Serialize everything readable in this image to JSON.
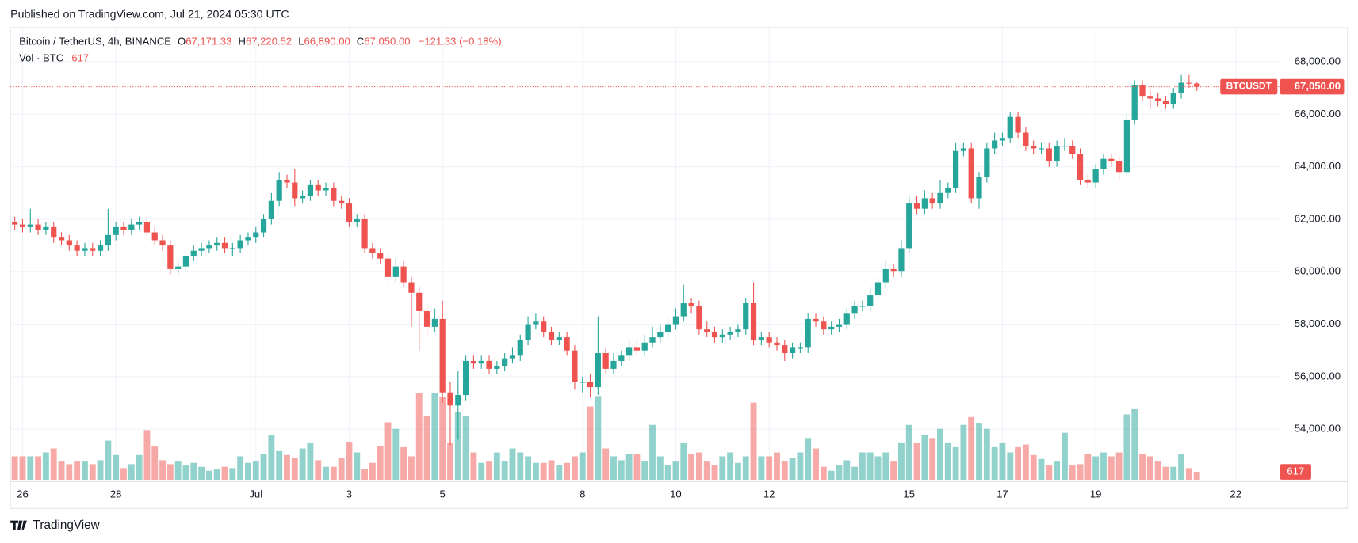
{
  "header": {
    "published": "Published on TradingView.com, Jul 21, 2024 05:30 UTC"
  },
  "footer": {
    "brand": "TradingView"
  },
  "chart_data": {
    "type": "candlestick",
    "legend": {
      "symbol": "Bitcoin / TetherUS, 4h, BINANCE",
      "open_prefix": "O",
      "high_prefix": "H",
      "low_prefix": "L",
      "close_prefix": "C",
      "open_label": "67,171.33",
      "high_label": "67,220.52",
      "low_label": "66,890.00",
      "close_label": "67,050.00",
      "change_label": "−121.33 (−0.18%)",
      "volume_title": "Vol · BTC"
    },
    "price_tag": {
      "name": "BTCUSDT",
      "label": "67,050.00"
    },
    "up_color": "#26a69a",
    "down_color": "#ef5350",
    "open": [
      61900,
      61800,
      61700,
      61800,
      61600,
      61700,
      61300,
      61200,
      61000,
      60800,
      60900,
      60800,
      61000,
      61400,
      61700,
      61600,
      61800,
      61900,
      61500,
      61200,
      61000,
      60100,
      60200,
      60600,
      60800,
      60900,
      61000,
      61100,
      60900,
      60900,
      61200,
      61300,
      61500,
      62000,
      62700,
      63500,
      63400,
      62800,
      62900,
      63300,
      63100,
      63200,
      62700,
      62600,
      61900,
      62000,
      60900,
      60700,
      60500,
      59800,
      60200,
      59600,
      59200,
      58500,
      57900,
      58200,
      55400,
      54900,
      55300,
      56600,
      56500,
      56600,
      56300,
      56400,
      56700,
      56800,
      57400,
      58000,
      58100,
      57700,
      57400,
      57500,
      57000,
      55800,
      55800,
      55600,
      56900,
      56300,
      56600,
      56800,
      57100,
      57000,
      57300,
      57500,
      57700,
      58000,
      58300,
      58800,
      58700,
      57800,
      57700,
      57500,
      57600,
      57700,
      57800,
      58800,
      57400,
      57500,
      57300,
      57200,
      56900,
      57100,
      57100,
      58200,
      58100,
      57800,
      57900,
      58000,
      58400,
      58700,
      58700,
      59100,
      59600,
      60100,
      60000,
      60900,
      62600,
      62400,
      62800,
      62600,
      63000,
      63200,
      64600,
      64700,
      62800,
      63600,
      64700,
      65000,
      65100,
      65900,
      65300,
      64800,
      64700,
      64700,
      64200,
      64800,
      64800,
      64500,
      63500,
      63400,
      63900,
      64300,
      64200,
      63800,
      65800,
      67100,
      66700,
      66600,
      66500,
      66400,
      66800,
      67200,
      67171.33
    ],
    "high": [
      62100,
      62000,
      62400,
      62000,
      61900,
      61900,
      61500,
      61400,
      61200,
      61100,
      61100,
      61200,
      62400,
      61900,
      61900,
      62000,
      62100,
      62100,
      61700,
      61400,
      61200,
      60400,
      60800,
      61000,
      61100,
      61200,
      61300,
      61300,
      61100,
      61400,
      61500,
      61700,
      62200,
      63000,
      63800,
      63700,
      63900,
      63100,
      63500,
      63500,
      63400,
      63400,
      62900,
      62800,
      62200,
      62200,
      61100,
      60900,
      60800,
      60500,
      60400,
      59800,
      59400,
      58800,
      58600,
      58900,
      55800,
      56200,
      56800,
      56800,
      56800,
      56800,
      56600,
      56900,
      57100,
      57600,
      58300,
      58400,
      58300,
      57900,
      57700,
      57700,
      57200,
      56000,
      56100,
      58300,
      57100,
      56900,
      57000,
      57400,
      57400,
      57600,
      57900,
      58000,
      58200,
      58600,
      59500,
      59000,
      58900,
      58100,
      57900,
      57800,
      57900,
      58000,
      59000,
      59600,
      57700,
      57700,
      57500,
      57400,
      57300,
      57300,
      58400,
      58400,
      58300,
      58100,
      58200,
      58600,
      58900,
      58900,
      59400,
      59800,
      60400,
      60300,
      61200,
      62900,
      62900,
      63100,
      63000,
      63500,
      63400,
      64900,
      64900,
      64900,
      63800,
      64900,
      65300,
      65300,
      66100,
      66100,
      65500,
      65000,
      64900,
      64900,
      65000,
      65100,
      65000,
      64700,
      63700,
      64100,
      64500,
      64500,
      64400,
      66000,
      67300,
      67300,
      66900,
      66800,
      66700,
      67000,
      67500,
      67500,
      67220.52
    ],
    "low": [
      61600,
      61500,
      61500,
      61400,
      61400,
      61100,
      61000,
      60800,
      60600,
      60600,
      60600,
      60600,
      60800,
      61200,
      61400,
      61400,
      61600,
      61300,
      61000,
      60800,
      59900,
      59900,
      60000,
      60400,
      60600,
      60700,
      60800,
      60700,
      60600,
      60700,
      61000,
      61100,
      61300,
      61800,
      62500,
      63200,
      62500,
      62600,
      62700,
      62900,
      62900,
      62500,
      62400,
      61700,
      61700,
      60700,
      60500,
      60300,
      59600,
      59600,
      59400,
      57900,
      57000,
      57600,
      57700,
      55000,
      53400,
      53600,
      55100,
      56300,
      56300,
      56100,
      56100,
      56200,
      56500,
      56600,
      57200,
      57800,
      57500,
      57200,
      57200,
      56800,
      55500,
      55400,
      55200,
      55300,
      56100,
      56100,
      56400,
      56600,
      56800,
      56800,
      57100,
      57300,
      57500,
      57800,
      58100,
      58400,
      57600,
      57500,
      57300,
      57300,
      57400,
      57500,
      57600,
      57200,
      57200,
      57100,
      57000,
      56600,
      56700,
      56900,
      56900,
      57900,
      57600,
      57600,
      57700,
      57800,
      58200,
      58500,
      58500,
      58900,
      59400,
      59800,
      59800,
      60700,
      62200,
      62200,
      62400,
      62400,
      62800,
      63000,
      64400,
      62600,
      62400,
      63400,
      64500,
      64800,
      64900,
      65100,
      64600,
      64500,
      64500,
      64000,
      64000,
      64600,
      64300,
      63300,
      63200,
      63200,
      63700,
      64000,
      63500,
      63600,
      65600,
      66500,
      66200,
      66300,
      66200,
      66200,
      66600,
      67000,
      66890
    ],
    "close": [
      61800,
      61700,
      61800,
      61600,
      61700,
      61300,
      61200,
      61000,
      60800,
      60900,
      60800,
      61000,
      61400,
      61700,
      61600,
      61800,
      61900,
      61500,
      61200,
      61000,
      60100,
      60200,
      60600,
      60800,
      60900,
      61000,
      61100,
      60900,
      60900,
      61200,
      61300,
      61500,
      62000,
      62700,
      63500,
      63400,
      62800,
      62900,
      63300,
      63100,
      63200,
      62700,
      62600,
      61900,
      62000,
      60900,
      60700,
      60500,
      59800,
      60200,
      59600,
      59200,
      58500,
      57900,
      58200,
      55400,
      54900,
      55300,
      56600,
      56500,
      56600,
      56300,
      56400,
      56700,
      56800,
      57400,
      58000,
      58100,
      57700,
      57400,
      57500,
      57000,
      55800,
      55800,
      55600,
      56900,
      56300,
      56600,
      56800,
      57100,
      57000,
      57300,
      57500,
      57700,
      58000,
      58300,
      58800,
      58700,
      57800,
      57700,
      57500,
      57600,
      57700,
      57800,
      58800,
      57400,
      57500,
      57300,
      57200,
      56900,
      57100,
      57100,
      58200,
      58100,
      57800,
      57900,
      58000,
      58400,
      58700,
      58700,
      59100,
      59600,
      60100,
      60000,
      60900,
      62600,
      62400,
      62800,
      62600,
      63000,
      63200,
      64600,
      64700,
      62800,
      63600,
      64700,
      65000,
      65100,
      65900,
      65300,
      64800,
      64700,
      64700,
      64200,
      64800,
      64800,
      64500,
      63500,
      63400,
      63900,
      64300,
      64200,
      63800,
      65800,
      67100,
      66700,
      66600,
      66500,
      66400,
      66800,
      67200,
      67171.33,
      67050
    ],
    "volume": [
      1800,
      1800,
      1800,
      1800,
      2100,
      2400,
      1400,
      1200,
      1400,
      1400,
      1200,
      1500,
      3000,
      1900,
      900,
      1200,
      1900,
      3800,
      2600,
      1500,
      1200,
      1400,
      1100,
      1300,
      1000,
      700,
      800,
      1000,
      900,
      1800,
      1300,
      1400,
      2000,
      3400,
      2200,
      1900,
      1700,
      2400,
      2800,
      1500,
      1000,
      1000,
      1700,
      2900,
      2100,
      800,
      1300,
      2600,
      4400,
      3900,
      2500,
      1800,
      6600,
      4900,
      6600,
      6300,
      2800,
      5200,
      4900,
      2100,
      1300,
      1400,
      2100,
      1400,
      2400,
      2100,
      1800,
      1300,
      1300,
      1500,
      1100,
      1300,
      1800,
      2100,
      5600,
      6400,
      2400,
      1800,
      1500,
      2000,
      2000,
      1400,
      4200,
      1800,
      1100,
      1400,
      2800,
      2000,
      2100,
      1400,
      1100,
      1800,
      2100,
      1300,
      1800,
      5900,
      1800,
      1800,
      2100,
      1400,
      1700,
      2100,
      3200,
      2400,
      1000,
      700,
      1100,
      1500,
      1000,
      2100,
      2100,
      1800,
      2100,
      1400,
      2800,
      4200,
      2800,
      3400,
      3200,
      3900,
      2800,
      2500,
      4200,
      4800,
      4300,
      3900,
      2500,
      2800,
      2100,
      2500,
      2700,
      1900,
      1600,
      1100,
      1400,
      3600,
      1100,
      1200,
      2000,
      1800,
      2100,
      1800,
      2100,
      5000,
      5400,
      2000,
      1800,
      1400,
      1000,
      1000,
      2000,
      900,
      617
    ],
    "ylim": [
      52000,
      69300
    ],
    "yticks": [
      {
        "value": 54000,
        "label": "54,000.00"
      },
      {
        "value": 56000,
        "label": "56,000.00"
      },
      {
        "value": 58000,
        "label": "58,000.00"
      },
      {
        "value": 60000,
        "label": "60,000.00"
      },
      {
        "value": 62000,
        "label": "62,000.00"
      },
      {
        "value": 64000,
        "label": "64,000.00"
      },
      {
        "value": 66000,
        "label": "66,000.00"
      },
      {
        "value": 68000,
        "label": "68,000.00"
      }
    ],
    "xticks": [
      {
        "value": 1,
        "label": "26"
      },
      {
        "value": 13,
        "label": "28"
      },
      {
        "value": 31,
        "label": "Jul"
      },
      {
        "value": 43,
        "label": "3"
      },
      {
        "value": 55,
        "label": "5"
      },
      {
        "value": 73,
        "label": "8"
      },
      {
        "value": 85,
        "label": "10"
      },
      {
        "value": 97,
        "label": "12"
      },
      {
        "value": 115,
        "label": "15"
      },
      {
        "value": 127,
        "label": "17"
      },
      {
        "value": 139,
        "label": "19"
      },
      {
        "value": 157,
        "label": "22"
      }
    ],
    "grid": true
  }
}
